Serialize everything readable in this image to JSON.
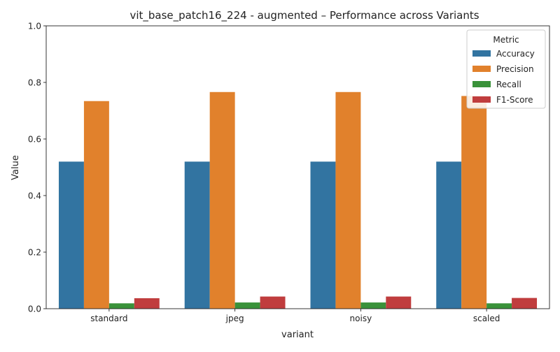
{
  "chart_data": {
    "type": "bar",
    "title": "vit_base_patch16_224 - augmented – Performance across Variants",
    "xlabel": "variant",
    "ylabel": "Value",
    "ylim": [
      0,
      1.0
    ],
    "yticks": [
      0.0,
      0.2,
      0.4,
      0.6,
      0.8,
      1.0
    ],
    "ytick_labels": [
      "0.0",
      "0.2",
      "0.4",
      "0.6",
      "0.8",
      "1.0"
    ],
    "categories": [
      "standard",
      "jpeg",
      "noisy",
      "scaled"
    ],
    "legend": {
      "title": "Metric",
      "position": "top-right"
    },
    "grid": false,
    "series": [
      {
        "name": "Accuracy",
        "color": "#3274a1",
        "values": [
          0.52,
          0.52,
          0.52,
          0.52
        ]
      },
      {
        "name": "Precision",
        "color": "#e1812c",
        "values": [
          0.734,
          0.766,
          0.766,
          0.752
        ]
      },
      {
        "name": "Recall",
        "color": "#3a923a",
        "values": [
          0.019,
          0.022,
          0.022,
          0.019
        ]
      },
      {
        "name": "F1-Score",
        "color": "#c03d3e",
        "values": [
          0.037,
          0.043,
          0.043,
          0.038
        ]
      }
    ]
  }
}
